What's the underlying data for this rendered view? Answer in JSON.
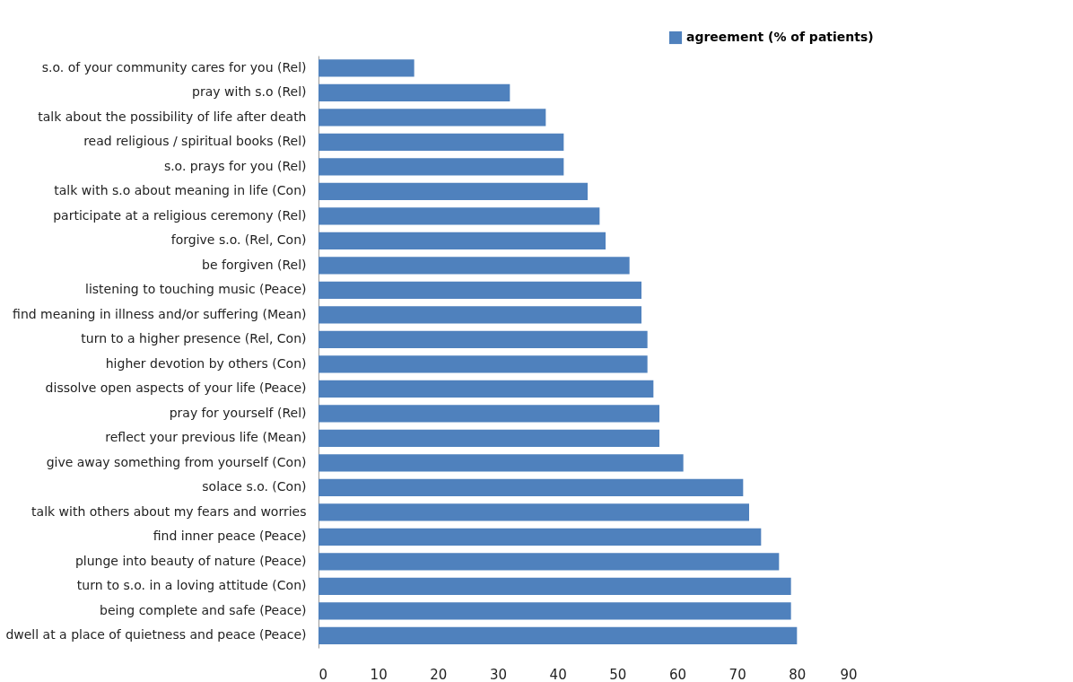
{
  "chart_data": {
    "type": "bar",
    "orientation": "horizontal",
    "categories": [
      "s.o. of your community cares for you (Rel)",
      "pray with s.o (Rel)",
      "talk about the possibility of life after death",
      "read religious / spiritual books (Rel)",
      "s.o. prays for you (Rel)",
      "talk with s.o about meaning in life (Con)",
      "participate at a religious ceremony (Rel)",
      "forgive s.o. (Rel, Con)",
      "be forgiven (Rel)",
      "listening to touching music (Peace)",
      "find meaning in illness and/or suffering (Mean)",
      "turn to a higher presence (Rel, Con)",
      "higher devotion by others (Con)",
      "dissolve open aspects of your life (Peace)",
      "pray for yourself (Rel)",
      "reflect your previous life (Mean)",
      "give away something from yourself (Con)",
      "solace s.o. (Con)",
      "talk with others about my fears and worries",
      "find inner peace (Peace)",
      "plunge into beauty of nature (Peace)",
      "turn to s.o. in a loving attitude (Con)",
      "being complete and safe (Peace)",
      "dwell at a place of quietness and peace (Peace)"
    ],
    "series": [
      {
        "name": "agreement (% of patients)",
        "color": "#4f81bd",
        "values": [
          16,
          32,
          38,
          41,
          41,
          45,
          47,
          48,
          52,
          54,
          54,
          55,
          55,
          56,
          57,
          57,
          61,
          71,
          72,
          74,
          77,
          79,
          79,
          80
        ]
      }
    ],
    "xlim": [
      0,
      90
    ],
    "xticks": [
      0,
      10,
      20,
      30,
      40,
      50,
      60,
      70,
      80,
      90
    ],
    "grid": false,
    "legend": "top right"
  }
}
